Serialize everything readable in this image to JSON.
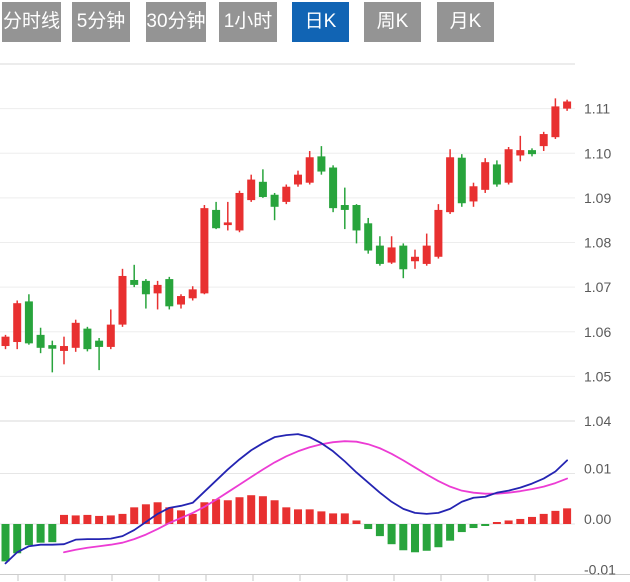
{
  "tabbar": {
    "tabs": [
      {
        "label": "分时线",
        "active": false
      },
      {
        "label": "5分钟",
        "active": false
      },
      {
        "label": "30分钟",
        "active": false
      },
      {
        "label": "1小时",
        "active": false
      },
      {
        "label": "日K",
        "active": true
      },
      {
        "label": "周K",
        "active": false
      },
      {
        "label": "月K",
        "active": false
      }
    ],
    "active_bg": "#1164b4",
    "inactive_bg": "#949494",
    "text_color": "#ffffff"
  },
  "colors": {
    "up": "#e83030",
    "down": "#28a43c",
    "dif_line": "#2424b2",
    "dea_line": "#ec3cd4",
    "grid_light": "#ededed",
    "grid_dark": "#d8d8d8",
    "axis_label": "#5a5a5a",
    "tick": "#c4c4c4",
    "background": "#ffffff"
  },
  "chart_data": [
    {
      "type": "candlestick",
      "pane": "price",
      "legend_position": "none",
      "grid": true,
      "ylim": [
        1.04,
        1.12
      ],
      "gridlines": [
        {
          "value": 1.12,
          "label": ""
        },
        {
          "value": 1.11,
          "label": "1.11"
        },
        {
          "value": 1.1,
          "label": "1.10"
        },
        {
          "value": 1.09,
          "label": "1.09"
        },
        {
          "value": 1.08,
          "label": "1.08"
        },
        {
          "value": 1.07,
          "label": "1.07"
        },
        {
          "value": 1.06,
          "label": "1.06"
        },
        {
          "value": 1.05,
          "label": "1.05"
        },
        {
          "value": 1.04,
          "label": "1.04"
        }
      ],
      "candles": [
        {
          "o": 1.0568,
          "h": 1.0593,
          "l": 1.0561,
          "c": 1.0589
        },
        {
          "o": 1.0577,
          "h": 1.067,
          "l": 1.0561,
          "c": 1.0664
        },
        {
          "o": 1.0668,
          "h": 1.0684,
          "l": 1.0571,
          "c": 1.0574
        },
        {
          "o": 1.0593,
          "h": 1.0609,
          "l": 1.0552,
          "c": 1.0564
        },
        {
          "o": 1.057,
          "h": 1.058,
          "l": 1.0509,
          "c": 1.0562
        },
        {
          "o": 1.0557,
          "h": 1.0589,
          "l": 1.0527,
          "c": 1.0568
        },
        {
          "o": 1.0564,
          "h": 1.0627,
          "l": 1.0555,
          "c": 1.062
        },
        {
          "o": 1.0607,
          "h": 1.0611,
          "l": 1.0556,
          "c": 1.0561
        },
        {
          "o": 1.058,
          "h": 1.0586,
          "l": 1.0514,
          "c": 1.0566
        },
        {
          "o": 1.0566,
          "h": 1.065,
          "l": 1.0561,
          "c": 1.0616
        },
        {
          "o": 1.0616,
          "h": 1.0741,
          "l": 1.0611,
          "c": 1.0725
        },
        {
          "o": 1.0716,
          "h": 1.075,
          "l": 1.07,
          "c": 1.0705
        },
        {
          "o": 1.0714,
          "h": 1.0718,
          "l": 1.0652,
          "c": 1.0684
        },
        {
          "o": 1.0686,
          "h": 1.0714,
          "l": 1.065,
          "c": 1.0705
        },
        {
          "o": 1.0718,
          "h": 1.0723,
          "l": 1.065,
          "c": 1.0657
        },
        {
          "o": 1.0661,
          "h": 1.0684,
          "l": 1.0652,
          "c": 1.068
        },
        {
          "o": 1.0675,
          "h": 1.0702,
          "l": 1.067,
          "c": 1.0695
        },
        {
          "o": 1.0686,
          "h": 1.0884,
          "l": 1.0684,
          "c": 1.0877
        },
        {
          "o": 1.0873,
          "h": 1.0891,
          "l": 1.083,
          "c": 1.0832
        },
        {
          "o": 1.0839,
          "h": 1.0891,
          "l": 1.0827,
          "c": 1.0845
        },
        {
          "o": 1.0827,
          "h": 1.0916,
          "l": 1.0823,
          "c": 1.0911
        },
        {
          "o": 1.0895,
          "h": 1.0952,
          "l": 1.0891,
          "c": 1.0941
        },
        {
          "o": 1.0936,
          "h": 1.0964,
          "l": 1.09,
          "c": 1.0902
        },
        {
          "o": 1.0907,
          "h": 1.0911,
          "l": 1.085,
          "c": 1.088
        },
        {
          "o": 1.0891,
          "h": 1.093,
          "l": 1.0886,
          "c": 1.0925
        },
        {
          "o": 1.093,
          "h": 1.0961,
          "l": 1.0925,
          "c": 1.0952
        },
        {
          "o": 1.0934,
          "h": 1.1005,
          "l": 1.093,
          "c": 1.0991
        },
        {
          "o": 1.0993,
          "h": 1.1016,
          "l": 1.0952,
          "c": 1.0959
        },
        {
          "o": 1.0968,
          "h": 1.0973,
          "l": 1.0868,
          "c": 1.0877
        },
        {
          "o": 1.0884,
          "h": 1.0923,
          "l": 1.083,
          "c": 1.0873
        },
        {
          "o": 1.0884,
          "h": 1.0886,
          "l": 1.0798,
          "c": 1.0827
        },
        {
          "o": 1.0843,
          "h": 1.0855,
          "l": 1.0775,
          "c": 1.0782
        },
        {
          "o": 1.0793,
          "h": 1.0814,
          "l": 1.0748,
          "c": 1.0752
        },
        {
          "o": 1.0755,
          "h": 1.0814,
          "l": 1.0752,
          "c": 1.0789
        },
        {
          "o": 1.0793,
          "h": 1.0798,
          "l": 1.072,
          "c": 1.074
        },
        {
          "o": 1.0758,
          "h": 1.0784,
          "l": 1.0741,
          "c": 1.0768
        },
        {
          "o": 1.0752,
          "h": 1.082,
          "l": 1.0748,
          "c": 1.0793
        },
        {
          "o": 1.0768,
          "h": 1.0886,
          "l": 1.0764,
          "c": 1.0873
        },
        {
          "o": 1.0868,
          "h": 1.1009,
          "l": 1.0864,
          "c": 1.0991
        },
        {
          "o": 1.099,
          "h": 1.0998,
          "l": 1.088,
          "c": 1.0888
        },
        {
          "o": 1.0892,
          "h": 1.0934,
          "l": 1.088,
          "c": 1.0926
        },
        {
          "o": 1.0918,
          "h": 1.0989,
          "l": 1.0911,
          "c": 1.098
        },
        {
          "o": 1.0975,
          "h": 1.0984,
          "l": 1.0925,
          "c": 1.093
        },
        {
          "o": 1.0934,
          "h": 1.1014,
          "l": 1.093,
          "c": 1.1009
        },
        {
          "o": 1.0995,
          "h": 1.1039,
          "l": 1.0982,
          "c": 1.1007
        },
        {
          "o": 1.1007,
          "h": 1.1011,
          "l": 1.0993,
          "c": 1.0998
        },
        {
          "o": 1.1016,
          "h": 1.1048,
          "l": 1.1005,
          "c": 1.1043
        },
        {
          "o": 1.1036,
          "h": 1.1123,
          "l": 1.1032,
          "c": 1.1105
        },
        {
          "o": 1.11,
          "h": 1.112,
          "l": 1.1095,
          "c": 1.1116
        }
      ]
    },
    {
      "type": "macd",
      "pane": "indicator",
      "grid": true,
      "ylim": [
        -0.0105,
        0.0196
      ],
      "gridlines": [
        {
          "value": 0.01,
          "label": "0.01"
        },
        {
          "value": 0.0,
          "label": "0.00"
        },
        {
          "value": -0.01,
          "label": "-0.01"
        }
      ],
      "histogram": [
        -0.0074,
        -0.0058,
        -0.0042,
        -0.0037,
        -0.0036,
        0.0018,
        0.0017,
        0.0018,
        0.0016,
        0.0017,
        0.002,
        0.0033,
        0.0039,
        0.0043,
        0.0033,
        0.0027,
        0.002,
        0.0043,
        0.0049,
        0.0047,
        0.0053,
        0.0057,
        0.0055,
        0.0047,
        0.0033,
        0.0029,
        0.0029,
        0.0025,
        0.0021,
        0.0021,
        0.0007,
        -0.001,
        -0.0024,
        -0.004,
        -0.0052,
        -0.0056,
        -0.0053,
        -0.0046,
        -0.0033,
        -0.0016,
        -0.0008,
        -0.0003,
        0.0002,
        0.0007,
        0.001,
        0.0014,
        0.002,
        0.0026,
        0.0031
      ],
      "series": [
        {
          "name": "DIF",
          "color": "#2424b2",
          "values": [
            -0.0078,
            -0.0056,
            -0.0044,
            -0.0041,
            -0.0041,
            -0.004,
            -0.0031,
            -0.003,
            -0.003,
            -0.0029,
            -0.0024,
            -0.0012,
            0.0004,
            0.002,
            0.0032,
            0.0036,
            0.0042,
            0.0064,
            0.0086,
            0.0108,
            0.0128,
            0.0146,
            0.016,
            0.0172,
            0.0176,
            0.0178,
            0.0172,
            0.016,
            0.0144,
            0.0124,
            0.0102,
            0.0082,
            0.0062,
            0.0044,
            0.003,
            0.0022,
            0.002,
            0.0022,
            0.003,
            0.0044,
            0.0052,
            0.0054,
            0.0062,
            0.0066,
            0.0072,
            0.008,
            0.009,
            0.0104,
            0.0126
          ]
        },
        {
          "name": "DEA",
          "color": "#ec3cd4",
          "values": [
            null,
            null,
            null,
            null,
            null,
            -0.0056,
            -0.0051,
            -0.0047,
            -0.0044,
            -0.0041,
            -0.0037,
            -0.003,
            -0.0021,
            -0.001,
            0.0002,
            0.0012,
            0.0022,
            0.0034,
            0.0048,
            0.0063,
            0.0078,
            0.0093,
            0.0108,
            0.0122,
            0.0134,
            0.0144,
            0.0152,
            0.0158,
            0.0162,
            0.0164,
            0.0163,
            0.0158,
            0.015,
            0.0139,
            0.0126,
            0.0112,
            0.0098,
            0.0085,
            0.0074,
            0.0066,
            0.0062,
            0.006,
            0.006,
            0.0062,
            0.0065,
            0.0069,
            0.0074,
            0.0081,
            0.009
          ]
        }
      ]
    }
  ]
}
